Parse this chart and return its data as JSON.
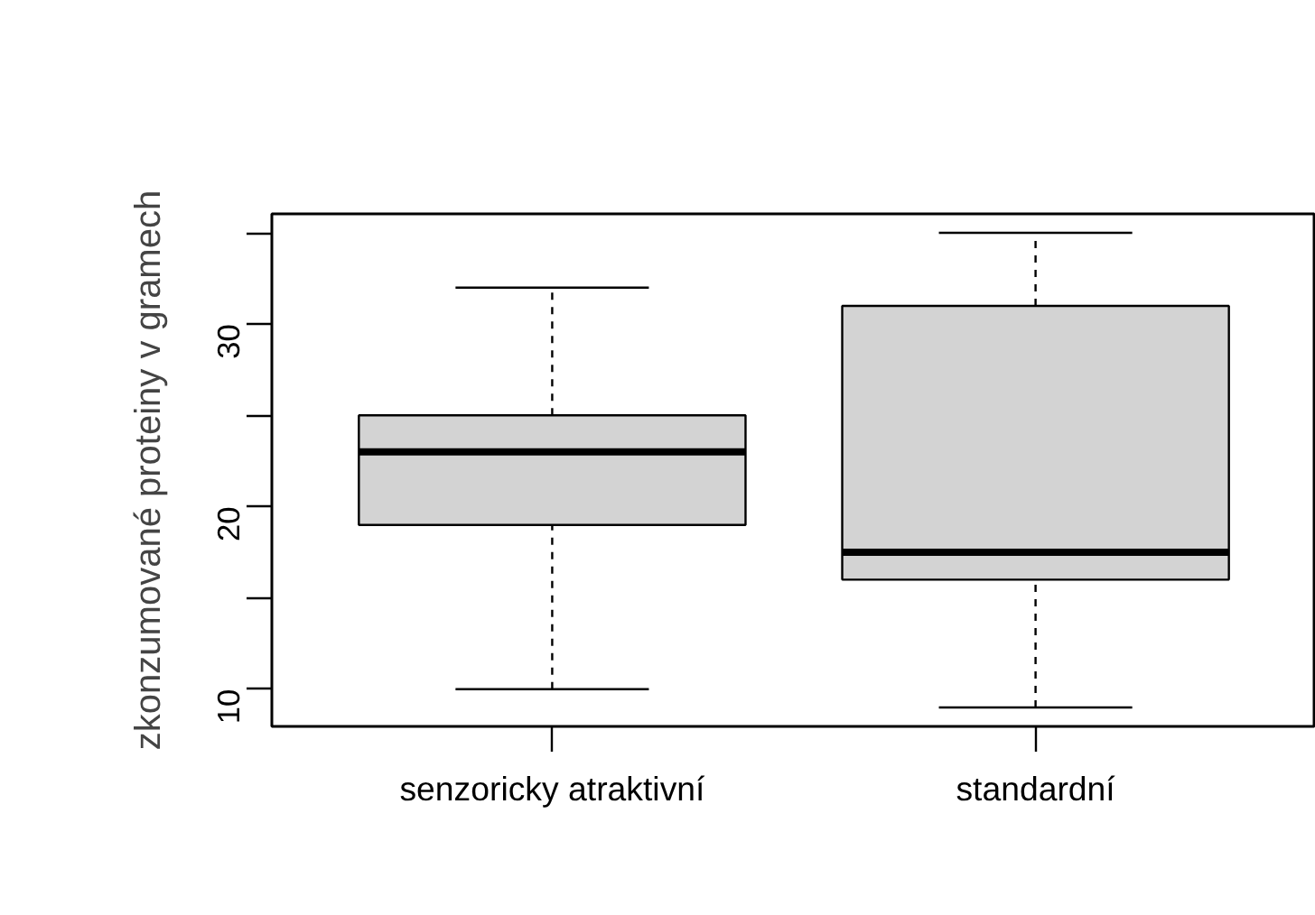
{
  "chart_data": {
    "type": "box",
    "ylabel": "zkonzumované proteiny v gramech",
    "categories": [
      "senzoricky atraktivní",
      "standardní"
    ],
    "boxes": [
      {
        "low": 10,
        "q1": 19,
        "median": 23,
        "q3": 25,
        "high": 32
      },
      {
        "low": 9,
        "q1": 16,
        "median": 17.5,
        "q3": 31,
        "high": 35
      }
    ],
    "color": "#d3d3d3",
    "ylim": [
      7.96,
      36.04
    ],
    "yticks": [
      10,
      {
        "value": 15,
        "label": null
      },
      20,
      {
        "value": 25,
        "label": null
      },
      30,
      {
        "value": 35,
        "label": null
      }
    ],
    "grid": false
  }
}
